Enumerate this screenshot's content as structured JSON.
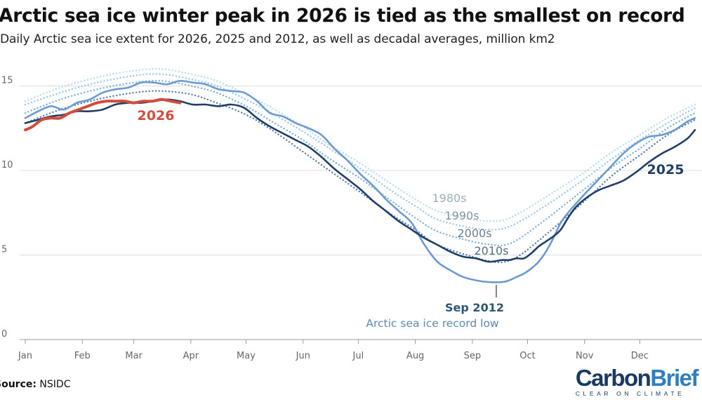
{
  "title": "Arctic sea ice winter peak in 2026 is tied as the smallest on record",
  "subtitle": "Daily Arctic sea ice extent for 2026, 2025 and 2012, as well as decadal averages, million km2",
  "source": {
    "label": "Source:",
    "text": "NSIDC"
  },
  "logo": {
    "part1": "Carbon",
    "part2": "Brief",
    "tagline": "CLEAR ON CLIMATE"
  },
  "colors": {
    "y2026": "#d34b3a",
    "y2025": "#1f3f68",
    "y2012": "#6d9ad1",
    "d1980s": "#b8dff0",
    "d1990s": "#9bc9e6",
    "d2000s": "#7fb1de",
    "d2010s": "#5a7fb3",
    "grid": "#dcdcdc",
    "axis_text": "#666666"
  },
  "chart_data": {
    "type": "line",
    "title": "Arctic sea ice winter peak in 2026 is tied as the smallest on record",
    "xlabel": "",
    "ylabel": "",
    "x_unit": "day of year",
    "xlim": [
      1,
      365
    ],
    "ylim": [
      0,
      16.5
    ],
    "yticks": [
      0,
      5,
      10,
      15
    ],
    "ytick_labels": [
      "0",
      "5",
      "10",
      "15"
    ],
    "month_ticks": [
      {
        "label": "Jan",
        "day": 1
      },
      {
        "label": "Feb",
        "day": 32
      },
      {
        "label": "Mar",
        "day": 60
      },
      {
        "label": "Apr",
        "day": 91
      },
      {
        "label": "May",
        "day": 121
      },
      {
        "label": "Jun",
        "day": 152
      },
      {
        "label": "Jul",
        "day": 182
      },
      {
        "label": "Aug",
        "day": 213
      },
      {
        "label": "Sep",
        "day": 244
      },
      {
        "label": "Oct",
        "day": 274
      },
      {
        "label": "Nov",
        "day": 305
      },
      {
        "label": "Dec",
        "day": 335
      }
    ],
    "grid": true,
    "series": [
      {
        "key": "d1980s",
        "name": "1980s",
        "style": "dotted",
        "x": [
          1,
          20,
          40,
          60,
          75,
          91,
          105,
          121,
          135,
          152,
          165,
          182,
          200,
          213,
          225,
          244,
          255,
          262,
          270,
          285,
          305,
          320,
          335,
          350,
          365
        ],
        "y": [
          14.1,
          14.9,
          15.5,
          15.9,
          16.0,
          15.7,
          15.3,
          14.5,
          13.7,
          12.6,
          11.6,
          10.5,
          9.2,
          8.3,
          7.6,
          7.1,
          7.0,
          7.1,
          7.5,
          8.5,
          9.9,
          11.1,
          12.1,
          13.1,
          13.9
        ]
      },
      {
        "key": "d1990s",
        "name": "1990s",
        "style": "dotted",
        "x": [
          1,
          20,
          40,
          60,
          75,
          91,
          105,
          121,
          135,
          152,
          165,
          182,
          200,
          213,
          225,
          244,
          255,
          262,
          270,
          285,
          305,
          320,
          335,
          350,
          365
        ],
        "y": [
          13.9,
          14.6,
          15.2,
          15.6,
          15.7,
          15.4,
          15.0,
          14.2,
          13.4,
          12.3,
          11.4,
          10.2,
          8.8,
          7.9,
          7.1,
          6.6,
          6.5,
          6.6,
          7.0,
          8.0,
          9.5,
          10.7,
          11.8,
          12.8,
          13.7
        ]
      },
      {
        "key": "d2000s",
        "name": "2000s",
        "style": "dotted",
        "x": [
          1,
          20,
          40,
          60,
          75,
          91,
          105,
          121,
          135,
          152,
          165,
          182,
          200,
          213,
          225,
          244,
          255,
          262,
          270,
          285,
          305,
          320,
          335,
          350,
          365
        ],
        "y": [
          13.4,
          14.2,
          14.8,
          15.2,
          15.3,
          15.0,
          14.6,
          13.8,
          12.9,
          11.8,
          10.8,
          9.6,
          8.2,
          7.2,
          6.4,
          5.8,
          5.6,
          5.6,
          6.0,
          7.2,
          8.9,
          10.2,
          11.3,
          12.5,
          13.4
        ]
      },
      {
        "key": "d2010s",
        "name": "2010s",
        "style": "dotted",
        "x": [
          1,
          20,
          40,
          60,
          75,
          91,
          105,
          121,
          135,
          152,
          165,
          182,
          200,
          213,
          225,
          244,
          255,
          262,
          270,
          285,
          305,
          320,
          335,
          350,
          365
        ],
        "y": [
          12.8,
          13.6,
          14.2,
          14.6,
          14.7,
          14.5,
          14.0,
          13.3,
          12.4,
          11.1,
          10.1,
          8.8,
          7.4,
          6.5,
          5.6,
          4.9,
          4.6,
          4.6,
          5.0,
          6.3,
          8.2,
          9.7,
          10.9,
          12.1,
          13.0
        ]
      },
      {
        "key": "y2012",
        "name": "2012",
        "style": "solid",
        "x": [
          1,
          8,
          15,
          22,
          29,
          36,
          43,
          50,
          57,
          64,
          71,
          78,
          85,
          92,
          99,
          106,
          113,
          120,
          127,
          134,
          141,
          148,
          155,
          162,
          169,
          176,
          183,
          190,
          197,
          204,
          211,
          218,
          225,
          232,
          239,
          246,
          253,
          260,
          264,
          268,
          272,
          276,
          280,
          284,
          288,
          292,
          296,
          300,
          305,
          312,
          319,
          326,
          333,
          340,
          347,
          354,
          361,
          365
        ],
        "y": [
          13.1,
          13.5,
          13.8,
          13.6,
          14.0,
          14.2,
          14.6,
          14.8,
          14.9,
          15.2,
          15.2,
          15.1,
          15.3,
          15.2,
          15.1,
          14.8,
          14.7,
          14.6,
          14.1,
          13.4,
          13.2,
          12.8,
          12.5,
          12.1,
          11.3,
          10.6,
          9.8,
          9.1,
          8.3,
          7.6,
          6.9,
          5.6,
          4.6,
          4.1,
          3.7,
          3.5,
          3.4,
          3.4,
          3.5,
          3.7,
          3.9,
          4.2,
          4.6,
          5.2,
          6.0,
          6.9,
          7.5,
          8.0,
          8.6,
          9.4,
          10.2,
          11.0,
          11.6,
          12.0,
          12.1,
          12.4,
          12.9,
          13.1
        ]
      },
      {
        "key": "y2025",
        "name": "2025",
        "style": "solid",
        "x": [
          1,
          8,
          15,
          22,
          29,
          36,
          43,
          50,
          57,
          64,
          71,
          78,
          85,
          92,
          99,
          106,
          113,
          120,
          127,
          134,
          141,
          148,
          155,
          162,
          169,
          176,
          183,
          190,
          197,
          204,
          211,
          218,
          225,
          232,
          239,
          246,
          253,
          260,
          264,
          268,
          272,
          276,
          280,
          284,
          288,
          292,
          296,
          300,
          305,
          312,
          319,
          326,
          333,
          340,
          347,
          354,
          361,
          365
        ],
        "y": [
          12.8,
          13.0,
          13.2,
          13.3,
          13.5,
          13.5,
          13.6,
          13.9,
          14.0,
          14.0,
          14.1,
          14.2,
          14.1,
          13.9,
          13.9,
          13.8,
          13.9,
          13.7,
          13.1,
          12.6,
          12.2,
          11.8,
          11.4,
          10.8,
          10.1,
          9.5,
          8.9,
          8.2,
          7.6,
          7.0,
          6.5,
          6.0,
          5.6,
          5.2,
          4.9,
          4.8,
          4.6,
          4.7,
          4.7,
          4.8,
          4.8,
          5.1,
          5.5,
          5.8,
          6.1,
          6.5,
          7.2,
          7.8,
          8.3,
          8.8,
          9.1,
          9.4,
          9.9,
          10.5,
          11.0,
          11.4,
          11.9,
          12.4
        ]
      },
      {
        "key": "y2026",
        "name": "2026",
        "style": "solid",
        "x": [
          1,
          5,
          10,
          15,
          20,
          25,
          30,
          35,
          40,
          45,
          50,
          55,
          60,
          65,
          70,
          75,
          80,
          85
        ],
        "y": [
          12.4,
          12.6,
          13.0,
          13.1,
          13.1,
          13.4,
          13.6,
          13.8,
          14.0,
          14.1,
          14.1,
          14.1,
          14.0,
          14.1,
          14.1,
          14.2,
          14.1,
          14.0
        ]
      }
    ],
    "labels": [
      {
        "key": "y2026",
        "text": "2026"
      },
      {
        "key": "y2025",
        "text": "2025"
      },
      {
        "key": "d1980s",
        "text": "1980s"
      },
      {
        "key": "d1990s",
        "text": "1990s"
      },
      {
        "key": "d2000s",
        "text": "2000s"
      },
      {
        "key": "d2010s",
        "text": "2010s"
      }
    ],
    "annotation": {
      "title": "Sep 2012",
      "text": "Arctic sea ice record low",
      "day": 257,
      "value": 3.4
    }
  }
}
